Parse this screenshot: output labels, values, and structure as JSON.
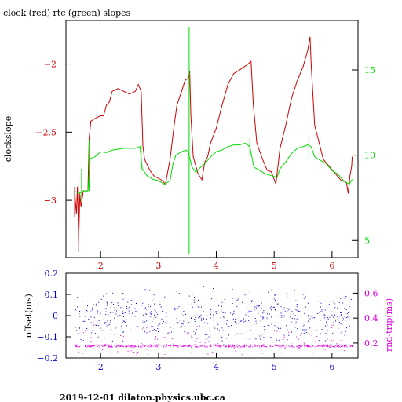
{
  "colors": {
    "clock": "#cc0000",
    "rtc": "#00dd00",
    "offset": "#0000cc",
    "rndtrip": "#dd00dd",
    "axis": "#000000"
  },
  "footer": "2019-12-01 dilaton.physics.ubc.ca",
  "chart_data": [
    {
      "type": "line",
      "title": "clock (red) rtc (green) slopes",
      "ylabel": "clockslope",
      "xlim": [
        1.4,
        6.45
      ],
      "ylim": [
        -3.42,
        -1.68
      ],
      "y2lim": [
        4.0,
        17.9
      ],
      "x_ticks": [
        2,
        3,
        4,
        5,
        6
      ],
      "y_ticks": [
        -2,
        -2.5,
        -3
      ],
      "y2_ticks": [
        5,
        10,
        15
      ],
      "series": [
        {
          "name": "clock",
          "axis": "left",
          "points": [
            [
              1.55,
              -2.93
            ],
            [
              1.58,
              -3.1
            ],
            [
              1.6,
              -2.9
            ],
            [
              1.62,
              -3.3
            ],
            [
              1.64,
              -2.95
            ],
            [
              1.66,
              -3.05
            ],
            [
              1.7,
              -2.93
            ],
            [
              1.78,
              -2.93
            ],
            [
              1.8,
              -2.55
            ],
            [
              1.83,
              -2.42
            ],
            [
              1.9,
              -2.4
            ],
            [
              2.0,
              -2.38
            ],
            [
              2.05,
              -2.38
            ],
            [
              2.1,
              -2.3
            ],
            [
              2.15,
              -2.28
            ],
            [
              2.2,
              -2.2
            ],
            [
              2.3,
              -2.18
            ],
            [
              2.4,
              -2.2
            ],
            [
              2.5,
              -2.22
            ],
            [
              2.6,
              -2.2
            ],
            [
              2.65,
              -2.15
            ],
            [
              2.7,
              -2.2
            ],
            [
              2.73,
              -2.6
            ],
            [
              2.76,
              -2.7
            ],
            [
              2.85,
              -2.78
            ],
            [
              2.92,
              -2.82
            ],
            [
              3.05,
              -2.85
            ],
            [
              3.12,
              -2.88
            ],
            [
              3.2,
              -2.7
            ],
            [
              3.27,
              -2.45
            ],
            [
              3.32,
              -2.3
            ],
            [
              3.4,
              -2.2
            ],
            [
              3.46,
              -2.12
            ],
            [
              3.52,
              -2.1
            ],
            [
              3.54,
              -2.05
            ],
            [
              3.56,
              -2.38
            ],
            [
              3.6,
              -2.68
            ],
            [
              3.68,
              -2.8
            ],
            [
              3.75,
              -2.85
            ],
            [
              3.8,
              -2.72
            ],
            [
              3.85,
              -2.68
            ],
            [
              3.9,
              -2.58
            ],
            [
              4.0,
              -2.47
            ],
            [
              4.1,
              -2.3
            ],
            [
              4.2,
              -2.15
            ],
            [
              4.3,
              -2.07
            ],
            [
              4.45,
              -2.03
            ],
            [
              4.55,
              -2.0
            ],
            [
              4.6,
              -1.98
            ],
            [
              4.64,
              -2.3
            ],
            [
              4.7,
              -2.58
            ],
            [
              4.8,
              -2.7
            ],
            [
              4.88,
              -2.78
            ],
            [
              4.95,
              -2.79
            ],
            [
              5.03,
              -2.88
            ],
            [
              5.1,
              -2.62
            ],
            [
              5.2,
              -2.45
            ],
            [
              5.3,
              -2.25
            ],
            [
              5.4,
              -2.12
            ],
            [
              5.5,
              -2.02
            ],
            [
              5.58,
              -1.9
            ],
            [
              5.62,
              -1.8
            ],
            [
              5.64,
              -2.0
            ],
            [
              5.7,
              -2.45
            ],
            [
              5.78,
              -2.58
            ],
            [
              5.85,
              -2.7
            ],
            [
              5.95,
              -2.75
            ],
            [
              6.05,
              -2.8
            ],
            [
              6.15,
              -2.85
            ],
            [
              6.25,
              -2.87
            ],
            [
              6.28,
              -2.95
            ],
            [
              6.31,
              -2.82
            ],
            [
              6.34,
              -2.75
            ],
            [
              6.35,
              -2.68
            ]
          ]
        },
        {
          "name": "rtc",
          "axis": "right",
          "points": [
            [
              1.55,
              7.9
            ],
            [
              1.6,
              7.8
            ],
            [
              1.65,
              7.8
            ],
            [
              1.7,
              7.9
            ],
            [
              1.78,
              7.9
            ],
            [
              1.82,
              9.8
            ],
            [
              1.9,
              9.9
            ],
            [
              2.0,
              10.2
            ],
            [
              2.1,
              10.15
            ],
            [
              2.2,
              10.3
            ],
            [
              2.3,
              10.35
            ],
            [
              2.4,
              10.4
            ],
            [
              2.5,
              10.4
            ],
            [
              2.6,
              10.4
            ],
            [
              2.68,
              10.5
            ],
            [
              2.72,
              9.2
            ],
            [
              2.8,
              8.8
            ],
            [
              2.9,
              8.6
            ],
            [
              3.0,
              8.5
            ],
            [
              3.1,
              8.3
            ],
            [
              3.2,
              8.5
            ],
            [
              3.25,
              9.5
            ],
            [
              3.3,
              10.0
            ],
            [
              3.4,
              10.2
            ],
            [
              3.48,
              10.3
            ],
            [
              3.52,
              10.1
            ],
            [
              3.58,
              9.3
            ],
            [
              3.65,
              9.0
            ],
            [
              3.7,
              9.2
            ],
            [
              3.8,
              9.5
            ],
            [
              3.9,
              9.9
            ],
            [
              4.0,
              10.2
            ],
            [
              4.1,
              10.3
            ],
            [
              4.2,
              10.5
            ],
            [
              4.3,
              10.6
            ],
            [
              4.4,
              10.6
            ],
            [
              4.5,
              10.7
            ],
            [
              4.58,
              10.5
            ],
            [
              4.65,
              9.3
            ],
            [
              4.75,
              9.1
            ],
            [
              4.85,
              8.9
            ],
            [
              4.95,
              8.8
            ],
            [
              5.05,
              8.7
            ],
            [
              5.1,
              9.2
            ],
            [
              5.2,
              9.6
            ],
            [
              5.3,
              10.1
            ],
            [
              5.4,
              10.4
            ],
            [
              5.5,
              10.5
            ],
            [
              5.58,
              10.6
            ],
            [
              5.64,
              10.5
            ],
            [
              5.7,
              9.9
            ],
            [
              5.8,
              9.7
            ],
            [
              5.9,
              9.5
            ],
            [
              6.0,
              9.1
            ],
            [
              6.1,
              8.9
            ],
            [
              6.2,
              8.5
            ],
            [
              6.3,
              8.3
            ],
            [
              6.35,
              8.6
            ]
          ]
        }
      ]
    },
    {
      "type": "scatter",
      "ylabel": "offset(ms)",
      "y2label": "rnd-trip(ms)",
      "xlim": [
        1.4,
        6.45
      ],
      "ylim": [
        -0.2,
        0.2
      ],
      "y2lim": [
        0.08,
        0.76
      ],
      "x_ticks": [
        2,
        3,
        4,
        5,
        6
      ],
      "y_ticks": [
        0.2,
        0.1,
        0,
        -0.1,
        -0.2
      ],
      "y2_ticks": [
        0.6,
        0.4,
        0.2
      ],
      "series": [
        {
          "name": "offset",
          "axis": "left",
          "center": 0.0,
          "spread": 0.12,
          "xrange": [
            1.55,
            6.35
          ]
        },
        {
          "name": "rnd-trip",
          "axis": "right",
          "center": 0.18,
          "spread": 0.06,
          "xrange": [
            1.55,
            6.35
          ]
        }
      ]
    }
  ]
}
